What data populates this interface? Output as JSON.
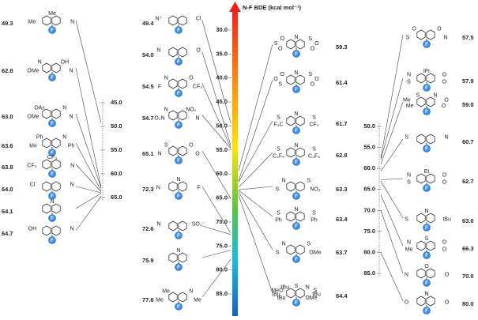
{
  "axis": {
    "title": "N-F BDE (kcal mol⁻¹)",
    "ticks": [
      "30.0",
      "35.0",
      "40.0",
      "45.0",
      "50.0",
      "55.0",
      "60.0",
      "65.0",
      "70.0",
      "75.0",
      "80.0",
      "85.0"
    ]
  },
  "left_scale": {
    "ticks": [
      "45.0",
      "50.0",
      "55.0",
      "60.0",
      "65.0"
    ]
  },
  "right_scale": {
    "ticks": [
      "50.0",
      "55.0",
      "60.0",
      "65.0",
      "70.0",
      "75.0",
      "80.0",
      "85.0"
    ]
  },
  "columns": [
    {
      "molecules": [
        {
          "bde": "49.3",
          "labels": [
            "Me",
            "Me",
            "N",
            "F"
          ]
        },
        {
          "bde": "62.8",
          "labels": [
            "OMe",
            "N",
            "OH",
            "N",
            "F"
          ]
        },
        {
          "bde": "63.0",
          "labels": [
            "OMe",
            "OAc",
            "N",
            "N",
            "F"
          ]
        },
        {
          "bde": "63.6",
          "labels": [
            "Me",
            "Ph",
            "N",
            "Ph",
            "F"
          ]
        },
        {
          "bde": "63.8",
          "labels": [
            "CF₃",
            "CF₃",
            "N",
            "F"
          ]
        },
        {
          "bde": "64.0",
          "labels": [
            "Cl",
            "N",
            "F"
          ]
        },
        {
          "bde": "64.1",
          "labels": [
            "N",
            "F"
          ]
        },
        {
          "bde": "64.7",
          "labels": [
            "OH",
            "N",
            "F"
          ]
        }
      ]
    },
    {
      "molecules": [
        {
          "bde": "49.4",
          "labels": [
            "N⁺",
            "Cl",
            "F"
          ]
        },
        {
          "bde": "54.0",
          "labels": [
            "N",
            "O",
            "F"
          ]
        },
        {
          "bde": "54.5",
          "labels": [
            "F",
            "N",
            "O",
            "CF₃",
            "F"
          ]
        },
        {
          "bde": "54.7",
          "labels": [
            "O₂N",
            "N",
            "NO₂",
            "N",
            "F"
          ]
        },
        {
          "bde": "65.1",
          "labels": [
            "N",
            "S",
            "O",
            "O",
            "F"
          ]
        },
        {
          "bde": "72.3",
          "labels": [
            "N",
            "N",
            "F",
            "F"
          ]
        },
        {
          "bde": "72.6",
          "labels": [
            "N",
            "SO₃⁻",
            "F"
          ]
        },
        {
          "bde": "75.9",
          "labels": [
            "N",
            "F"
          ]
        },
        {
          "bde": "77.8",
          "labels": [
            "Me",
            "Me",
            "N",
            "Me",
            "F"
          ]
        }
      ]
    },
    {
      "molecules": [
        {
          "bde": "59.3",
          "labels": [
            "O",
            "S",
            "O",
            "N",
            "S",
            "O",
            "O",
            "F"
          ]
        },
        {
          "bde": "61.4",
          "labels": [
            "S",
            "O",
            "O",
            "N",
            "S",
            "O",
            "O",
            "F"
          ]
        },
        {
          "bde": "61.7",
          "labels": [
            "F₃C",
            "S",
            "N",
            "S",
            "CF₃",
            "F"
          ]
        },
        {
          "bde": "62.8",
          "labels": [
            "C₄F₉",
            "S",
            "N",
            "S",
            "C₄F₉",
            "F"
          ]
        },
        {
          "bde": "63.3",
          "labels": [
            "S",
            "N",
            "S",
            "NO₂",
            "F"
          ]
        },
        {
          "bde": "63.4",
          "labels": [
            "Ph",
            "S",
            "N",
            "S",
            "Ph",
            "F"
          ]
        },
        {
          "bde": "63.7",
          "labels": [
            "S",
            "N",
            "S",
            "OMe",
            "F"
          ]
        },
        {
          "bde": "64.4",
          "labels": [
            "tBu",
            "tBu",
            "MeO",
            "tBu",
            "S",
            "N",
            "S",
            "tBu",
            "OMe",
            "F"
          ]
        }
      ]
    },
    {
      "molecules": [
        {
          "bde": "57.5",
          "labels": [
            "S",
            "O",
            "O",
            "N",
            "F"
          ]
        },
        {
          "bde": "57.9",
          "labels": [
            "S",
            "N",
            "iPr",
            "O",
            "O",
            "F"
          ]
        },
        {
          "bde": "59.0",
          "labels": [
            "Me",
            "Me",
            "S",
            "N",
            "O",
            "O",
            "F"
          ]
        },
        {
          "bde": "60.7",
          "labels": [
            "S",
            "N",
            "F"
          ]
        },
        {
          "bde": "62.7",
          "labels": [
            "S",
            "N",
            "Et",
            "O",
            "O",
            "F"
          ]
        },
        {
          "bde": "63.0",
          "labels": [
            "S",
            "N",
            "tBu",
            "F"
          ]
        },
        {
          "bde": "66.3",
          "labels": [
            "Me",
            "N",
            "S",
            "O",
            "O",
            "F"
          ]
        },
        {
          "bde": "70.0",
          "labels": [
            "N",
            "O",
            "O",
            "F"
          ]
        },
        {
          "bde": "80.0",
          "labels": [
            "O",
            "N",
            "O",
            "F"
          ]
        }
      ]
    }
  ]
}
